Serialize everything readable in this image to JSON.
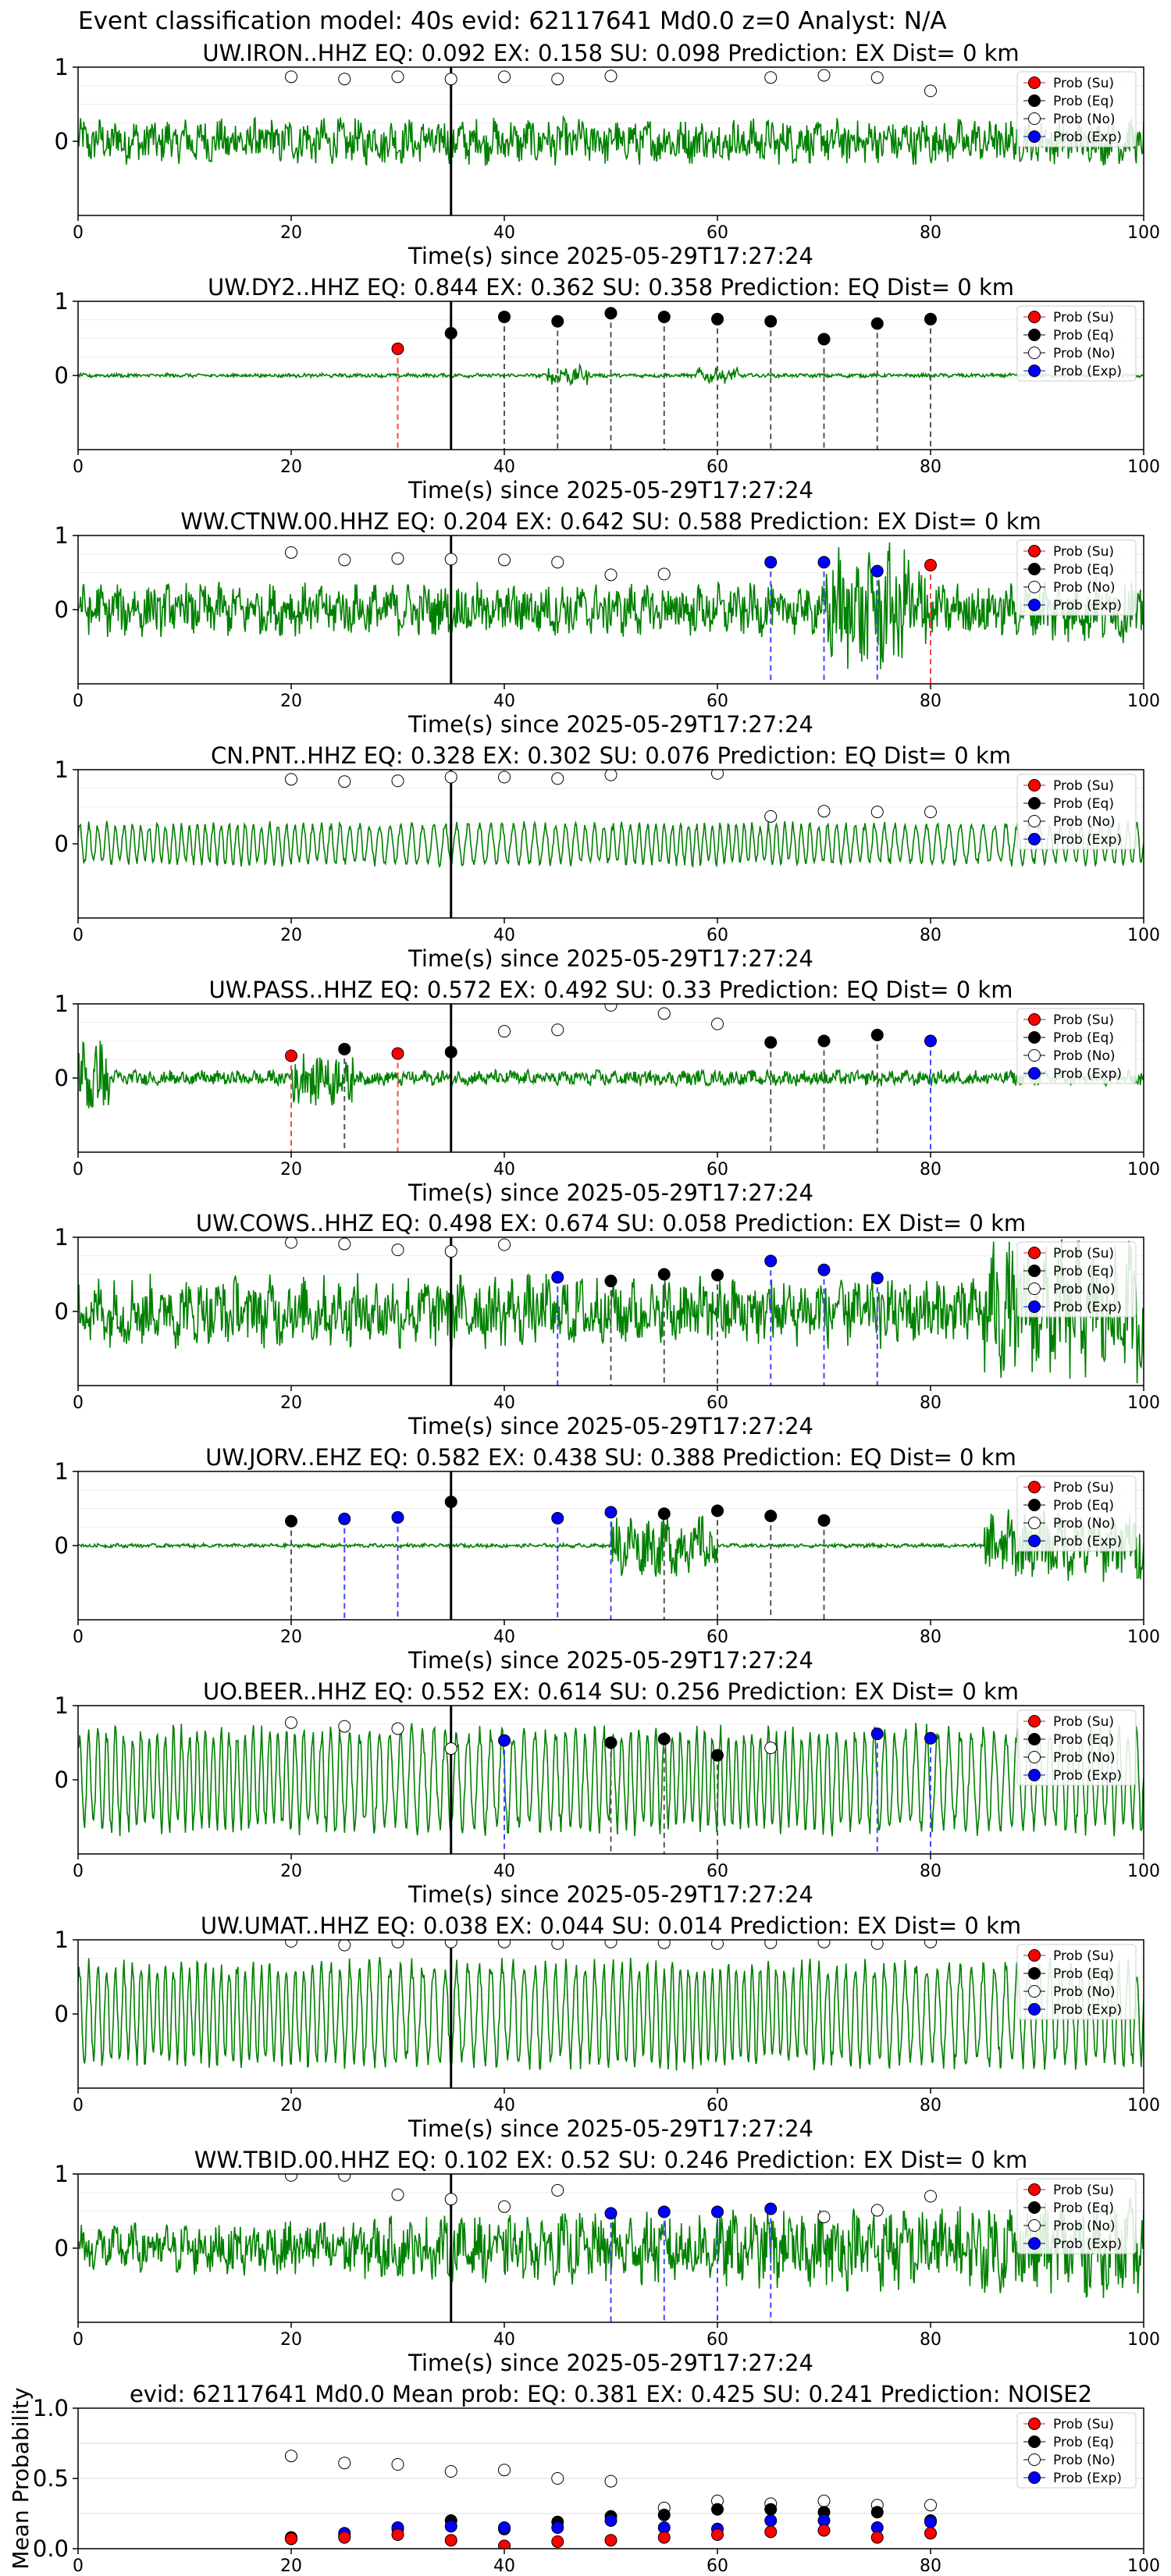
{
  "figure_title": "Event classification model: 40s evid: 62117641 Md0.0 z=0 Analyst: N/A",
  "legend_entries": [
    "Prob (Su)",
    "Prob (Eq)",
    "Prob (No)",
    "Prob (Exp)"
  ],
  "colors": {
    "su": "#ff0000",
    "eq": "#000000",
    "no": "#ffffff",
    "exp": "#0000ff",
    "waveform": "#008000",
    "dash_su": "#ff4444",
    "dash_eq": "#555555",
    "dash_exp": "#4444ff"
  },
  "chart_data": [
    {
      "type": "line",
      "title": "UW.IRON..HHZ   EQ: 0.092  EX: 0.158  SU: 0.098   Prediction: EX    Dist= 0 km",
      "xlabel": "Time(s) since 2025-05-29T17:27:24",
      "xlim": [
        0,
        100
      ],
      "ylim": [
        -1,
        1
      ],
      "xticks": [
        0,
        20,
        40,
        60,
        80,
        100
      ],
      "yticks": [
        0,
        1
      ],
      "arrival_time": 35,
      "amp": 0.35,
      "style": "noise",
      "points": [
        {
          "t": 20,
          "p": 0.87,
          "c": "no"
        },
        {
          "t": 25,
          "p": 0.84,
          "c": "no"
        },
        {
          "t": 30,
          "p": 0.87,
          "c": "no"
        },
        {
          "t": 35,
          "p": 0.84,
          "c": "no"
        },
        {
          "t": 40,
          "p": 0.87,
          "c": "no"
        },
        {
          "t": 45,
          "p": 0.84,
          "c": "no"
        },
        {
          "t": 50,
          "p": 0.88,
          "c": "no"
        },
        {
          "t": 65,
          "p": 0.86,
          "c": "no"
        },
        {
          "t": 70,
          "p": 0.89,
          "c": "no"
        },
        {
          "t": 75,
          "p": 0.86,
          "c": "no"
        },
        {
          "t": 80,
          "p": 0.68,
          "c": "no"
        }
      ]
    },
    {
      "type": "line",
      "title": "UW.DY2..HHZ   EQ: 0.844  EX: 0.362  SU: 0.358   Prediction: EQ    Dist= 0 km",
      "xlabel": "Time(s) since 2025-05-29T17:27:24",
      "xlim": [
        0,
        100
      ],
      "ylim": [
        -1,
        1
      ],
      "xticks": [
        0,
        20,
        40,
        60,
        80,
        100
      ],
      "yticks": [
        0,
        1
      ],
      "arrival_time": 35,
      "amp": 0.15,
      "style": "quiet",
      "points": [
        {
          "t": 30,
          "p": 0.36,
          "c": "su"
        },
        {
          "t": 35,
          "p": 0.57,
          "c": "eq"
        },
        {
          "t": 40,
          "p": 0.79,
          "c": "eq"
        },
        {
          "t": 45,
          "p": 0.73,
          "c": "eq"
        },
        {
          "t": 50,
          "p": 0.84,
          "c": "eq"
        },
        {
          "t": 55,
          "p": 0.79,
          "c": "eq"
        },
        {
          "t": 60,
          "p": 0.76,
          "c": "eq"
        },
        {
          "t": 65,
          "p": 0.73,
          "c": "eq"
        },
        {
          "t": 70,
          "p": 0.49,
          "c": "eq"
        },
        {
          "t": 75,
          "p": 0.7,
          "c": "eq"
        },
        {
          "t": 80,
          "p": 0.76,
          "c": "eq"
        }
      ]
    },
    {
      "type": "line",
      "title": "WW.CTNW.00.HHZ   EQ: 0.204  EX: 0.642  SU: 0.588   Prediction: EX    Dist= 0 km",
      "xlabel": "Time(s) since 2025-05-29T17:27:24",
      "xlim": [
        0,
        100
      ],
      "ylim": [
        -1,
        1
      ],
      "xticks": [
        0,
        20,
        40,
        60,
        80,
        100
      ],
      "yticks": [
        0,
        1
      ],
      "arrival_time": 35,
      "amp": 0.4,
      "style": "noise_burst",
      "points": [
        {
          "t": 20,
          "p": 0.77,
          "c": "no"
        },
        {
          "t": 25,
          "p": 0.67,
          "c": "no"
        },
        {
          "t": 30,
          "p": 0.69,
          "c": "no"
        },
        {
          "t": 35,
          "p": 0.68,
          "c": "no"
        },
        {
          "t": 40,
          "p": 0.67,
          "c": "no"
        },
        {
          "t": 45,
          "p": 0.64,
          "c": "no"
        },
        {
          "t": 50,
          "p": 0.47,
          "c": "no"
        },
        {
          "t": 55,
          "p": 0.48,
          "c": "no"
        },
        {
          "t": 65,
          "p": 0.64,
          "c": "exp"
        },
        {
          "t": 70,
          "p": 0.64,
          "c": "exp"
        },
        {
          "t": 75,
          "p": 0.52,
          "c": "exp"
        },
        {
          "t": 80,
          "p": 0.6,
          "c": "su"
        }
      ]
    },
    {
      "type": "line",
      "title": "CN.PNT..HHZ   EQ: 0.328  EX: 0.302  SU: 0.076   Prediction: EQ    Dist= 0 km",
      "xlabel": "Time(s) since 2025-05-29T17:27:24",
      "xlim": [
        0,
        100
      ],
      "ylim": [
        -1,
        1
      ],
      "xticks": [
        0,
        20,
        40,
        60,
        80,
        100
      ],
      "yticks": [
        0,
        1
      ],
      "arrival_time": 35,
      "amp": 0.3,
      "style": "wavy",
      "points": [
        {
          "t": 20,
          "p": 0.87,
          "c": "no"
        },
        {
          "t": 25,
          "p": 0.84,
          "c": "no"
        },
        {
          "t": 30,
          "p": 0.85,
          "c": "no"
        },
        {
          "t": 35,
          "p": 0.9,
          "c": "no"
        },
        {
          "t": 40,
          "p": 0.9,
          "c": "no"
        },
        {
          "t": 45,
          "p": 0.88,
          "c": "no"
        },
        {
          "t": 50,
          "p": 0.93,
          "c": "no"
        },
        {
          "t": 60,
          "p": 0.95,
          "c": "no"
        },
        {
          "t": 65,
          "p": 0.37,
          "c": "no"
        },
        {
          "t": 70,
          "p": 0.44,
          "c": "no"
        },
        {
          "t": 75,
          "p": 0.43,
          "c": "no"
        },
        {
          "t": 80,
          "p": 0.43,
          "c": "no"
        }
      ]
    },
    {
      "type": "line",
      "title": "UW.PASS..HHZ   EQ: 0.572  EX: 0.492  SU: 0.33   Prediction: EQ    Dist= 0 km",
      "xlabel": "Time(s) since 2025-05-29T17:27:24",
      "xlim": [
        0,
        100
      ],
      "ylim": [
        -1,
        1
      ],
      "xticks": [
        0,
        20,
        40,
        60,
        80,
        100
      ],
      "yticks": [
        0,
        1
      ],
      "arrival_time": 35,
      "amp": 0.2,
      "style": "early_burst",
      "points": [
        {
          "t": 20,
          "p": 0.3,
          "c": "su"
        },
        {
          "t": 25,
          "p": 0.39,
          "c": "eq"
        },
        {
          "t": 30,
          "p": 0.33,
          "c": "su"
        },
        {
          "t": 35,
          "p": 0.35,
          "c": "eq"
        },
        {
          "t": 40,
          "p": 0.63,
          "c": "no"
        },
        {
          "t": 45,
          "p": 0.65,
          "c": "no"
        },
        {
          "t": 50,
          "p": 0.98,
          "c": "no"
        },
        {
          "t": 55,
          "p": 0.87,
          "c": "no"
        },
        {
          "t": 60,
          "p": 0.73,
          "c": "no"
        },
        {
          "t": 65,
          "p": 0.48,
          "c": "eq"
        },
        {
          "t": 70,
          "p": 0.5,
          "c": "eq"
        },
        {
          "t": 75,
          "p": 0.58,
          "c": "eq"
        },
        {
          "t": 80,
          "p": 0.5,
          "c": "exp"
        }
      ]
    },
    {
      "type": "line",
      "title": "UW.COWS..HHZ   EQ: 0.498  EX: 0.674  SU: 0.058   Prediction: EX    Dist= 0 km",
      "xlabel": "Time(s) since 2025-05-29T17:27:24",
      "xlim": [
        0,
        100
      ],
      "ylim": [
        -1,
        1
      ],
      "xticks": [
        0,
        20,
        40,
        60,
        80,
        100
      ],
      "yticks": [
        0,
        1
      ],
      "arrival_time": 35,
      "amp": 0.55,
      "style": "loud_end",
      "points": [
        {
          "t": 20,
          "p": 0.93,
          "c": "no"
        },
        {
          "t": 25,
          "p": 0.91,
          "c": "no"
        },
        {
          "t": 30,
          "p": 0.83,
          "c": "no"
        },
        {
          "t": 35,
          "p": 0.81,
          "c": "no"
        },
        {
          "t": 40,
          "p": 0.9,
          "c": "no"
        },
        {
          "t": 45,
          "p": 0.46,
          "c": "exp"
        },
        {
          "t": 50,
          "p": 0.41,
          "c": "eq"
        },
        {
          "t": 55,
          "p": 0.5,
          "c": "eq"
        },
        {
          "t": 60,
          "p": 0.49,
          "c": "eq"
        },
        {
          "t": 65,
          "p": 0.68,
          "c": "exp"
        },
        {
          "t": 70,
          "p": 0.56,
          "c": "exp"
        },
        {
          "t": 75,
          "p": 0.45,
          "c": "exp"
        }
      ]
    },
    {
      "type": "line",
      "title": "UW.JORV..EHZ   EQ: 0.582  EX: 0.438  SU: 0.388   Prediction: EQ    Dist= 0 km",
      "xlabel": "Time(s) since 2025-05-29T17:27:24",
      "xlim": [
        0,
        100
      ],
      "ylim": [
        -1,
        1
      ],
      "xticks": [
        0,
        20,
        40,
        60,
        80,
        100
      ],
      "yticks": [
        0,
        1
      ],
      "arrival_time": 35,
      "amp": 0.05,
      "style": "double_burst",
      "points": [
        {
          "t": 20,
          "p": 0.33,
          "c": "eq"
        },
        {
          "t": 25,
          "p": 0.36,
          "c": "exp"
        },
        {
          "t": 30,
          "p": 0.38,
          "c": "exp"
        },
        {
          "t": 35,
          "p": 0.59,
          "c": "eq"
        },
        {
          "t": 45,
          "p": 0.37,
          "c": "exp"
        },
        {
          "t": 50,
          "p": 0.45,
          "c": "exp"
        },
        {
          "t": 55,
          "p": 0.43,
          "c": "eq"
        },
        {
          "t": 60,
          "p": 0.47,
          "c": "eq"
        },
        {
          "t": 65,
          "p": 0.4,
          "c": "eq"
        },
        {
          "t": 70,
          "p": 0.34,
          "c": "eq"
        }
      ]
    },
    {
      "type": "line",
      "title": "UO.BEER..HHZ   EQ: 0.552  EX: 0.614  SU: 0.256   Prediction: EX    Dist= 0 km",
      "xlabel": "Time(s) since 2025-05-29T17:27:24",
      "xlim": [
        0,
        100
      ],
      "ylim": [
        -1,
        1
      ],
      "xticks": [
        0,
        20,
        40,
        60,
        80,
        100
      ],
      "yticks": [
        0,
        1
      ],
      "arrival_time": 35,
      "amp": 0.75,
      "style": "wavy_big",
      "points": [
        {
          "t": 20,
          "p": 0.77,
          "c": "no"
        },
        {
          "t": 25,
          "p": 0.72,
          "c": "no"
        },
        {
          "t": 30,
          "p": 0.69,
          "c": "no"
        },
        {
          "t": 35,
          "p": 0.42,
          "c": "no"
        },
        {
          "t": 40,
          "p": 0.53,
          "c": "exp"
        },
        {
          "t": 50,
          "p": 0.5,
          "c": "eq"
        },
        {
          "t": 55,
          "p": 0.55,
          "c": "eq"
        },
        {
          "t": 60,
          "p": 0.33,
          "c": "eq"
        },
        {
          "t": 65,
          "p": 0.43,
          "c": "no"
        },
        {
          "t": 75,
          "p": 0.62,
          "c": "exp"
        },
        {
          "t": 80,
          "p": 0.56,
          "c": "exp"
        }
      ]
    },
    {
      "type": "line",
      "title": "UW.UMAT..HHZ   EQ: 0.038  EX: 0.044  SU: 0.014   Prediction: EX    Dist= 0 km",
      "xlabel": "Time(s) since 2025-05-29T17:27:24",
      "xlim": [
        0,
        100
      ],
      "ylim": [
        -1,
        1
      ],
      "xticks": [
        0,
        20,
        40,
        60,
        80,
        100
      ],
      "yticks": [
        0,
        1
      ],
      "arrival_time": 35,
      "amp": 0.75,
      "style": "wavy_big",
      "points": [
        {
          "t": 20,
          "p": 0.98,
          "c": "no"
        },
        {
          "t": 25,
          "p": 0.93,
          "c": "no"
        },
        {
          "t": 30,
          "p": 0.97,
          "c": "no"
        },
        {
          "t": 35,
          "p": 0.97,
          "c": "no"
        },
        {
          "t": 40,
          "p": 0.97,
          "c": "no"
        },
        {
          "t": 45,
          "p": 0.95,
          "c": "no"
        },
        {
          "t": 50,
          "p": 0.97,
          "c": "no"
        },
        {
          "t": 55,
          "p": 0.96,
          "c": "no"
        },
        {
          "t": 60,
          "p": 0.95,
          "c": "no"
        },
        {
          "t": 65,
          "p": 0.96,
          "c": "no"
        },
        {
          "t": 70,
          "p": 0.97,
          "c": "no"
        },
        {
          "t": 75,
          "p": 0.95,
          "c": "no"
        },
        {
          "t": 80,
          "p": 0.97,
          "c": "no"
        }
      ]
    },
    {
      "type": "line",
      "title": "WW.TBID.00.HHZ   EQ: 0.102  EX: 0.52  SU: 0.246   Prediction: EX    Dist= 0 km",
      "xlabel": "Time(s) since 2025-05-29T17:27:24",
      "xlim": [
        0,
        100
      ],
      "ylim": [
        -1,
        1
      ],
      "xticks": [
        0,
        20,
        40,
        60,
        80,
        100
      ],
      "yticks": [
        0,
        1
      ],
      "arrival_time": 35,
      "amp": 0.45,
      "style": "noise_grow",
      "points": [
        {
          "t": 20,
          "p": 0.98,
          "c": "no"
        },
        {
          "t": 25,
          "p": 0.98,
          "c": "no"
        },
        {
          "t": 30,
          "p": 0.72,
          "c": "no"
        },
        {
          "t": 35,
          "p": 0.66,
          "c": "no"
        },
        {
          "t": 40,
          "p": 0.56,
          "c": "no"
        },
        {
          "t": 45,
          "p": 0.78,
          "c": "no"
        },
        {
          "t": 50,
          "p": 0.47,
          "c": "exp"
        },
        {
          "t": 55,
          "p": 0.49,
          "c": "exp"
        },
        {
          "t": 60,
          "p": 0.49,
          "c": "exp"
        },
        {
          "t": 65,
          "p": 0.53,
          "c": "exp"
        },
        {
          "t": 70,
          "p": 0.42,
          "c": "no"
        },
        {
          "t": 75,
          "p": 0.51,
          "c": "no"
        },
        {
          "t": 80,
          "p": 0.7,
          "c": "no"
        }
      ]
    },
    {
      "type": "scatter",
      "title": "evid: 62117641  Md0.0   Mean prob:   EQ: 0.381  EX: 0.425  SU: 0.241   Prediction: NOISE2",
      "xlabel": "",
      "ylabel": "Mean Probability",
      "xlim": [
        0,
        100
      ],
      "ylim": [
        0,
        1
      ],
      "xticks": [
        0,
        20,
        40,
        60,
        80,
        100
      ],
      "yticks": [
        0.0,
        0.5,
        1.0
      ],
      "ytick_labels": [
        "0.0",
        "0.5",
        "1.0"
      ],
      "series": [
        {
          "name": "Prob (No)",
          "c": "no",
          "x": [
            20,
            25,
            30,
            35,
            40,
            45,
            50,
            55,
            60,
            65,
            70,
            75,
            80
          ],
          "y": [
            0.66,
            0.61,
            0.6,
            0.55,
            0.56,
            0.5,
            0.48,
            0.29,
            0.34,
            0.32,
            0.34,
            0.31,
            0.31
          ]
        },
        {
          "name": "Prob (Eq)",
          "c": "eq",
          "x": [
            20,
            25,
            30,
            35,
            40,
            45,
            50,
            55,
            60,
            65,
            70,
            75,
            80
          ],
          "y": [
            0.08,
            0.09,
            0.14,
            0.2,
            0.14,
            0.19,
            0.23,
            0.24,
            0.28,
            0.28,
            0.26,
            0.26,
            0.2
          ]
        },
        {
          "name": "Prob (Exp)",
          "c": "exp",
          "x": [
            20,
            25,
            30,
            35,
            40,
            45,
            50,
            55,
            60,
            65,
            70,
            75,
            80
          ],
          "y": [
            0.07,
            0.11,
            0.15,
            0.16,
            0.15,
            0.15,
            0.2,
            0.15,
            0.14,
            0.2,
            0.2,
            0.15,
            0.19
          ]
        },
        {
          "name": "Prob (Su)",
          "c": "su",
          "x": [
            20,
            25,
            30,
            35,
            40,
            45,
            50,
            55,
            60,
            65,
            70,
            75,
            80
          ],
          "y": [
            0.07,
            0.08,
            0.1,
            0.06,
            0.02,
            0.05,
            0.06,
            0.08,
            0.1,
            0.12,
            0.13,
            0.08,
            0.11
          ]
        }
      ]
    }
  ]
}
